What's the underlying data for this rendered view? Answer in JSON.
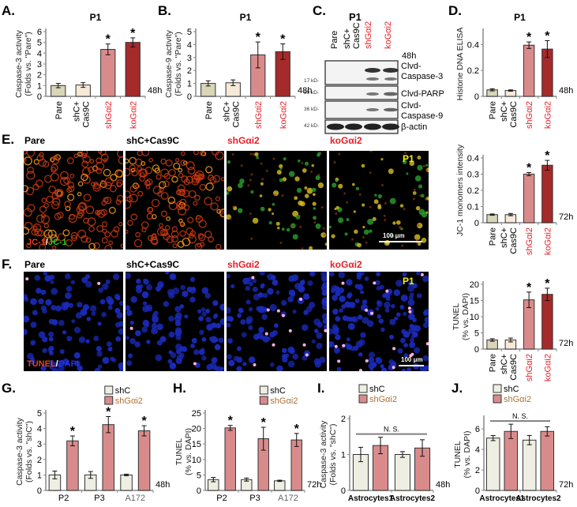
{
  "colors": {
    "pare": "#d8d5b8",
    "shC": "#f6e9d8",
    "shGai2": "#d98b8b",
    "koGai2": "#a52a2a",
    "astro_shC": "#eeeee2",
    "astro_shGai2": "#d98b8b",
    "red_label": "#e8202a",
    "p1_yellow": "#f4f000",
    "ns_line": "#808080"
  },
  "panels": {
    "A": {
      "letter": "A."
    },
    "B": {
      "letter": "B."
    },
    "C": {
      "letter": "C.",
      "title": "P1",
      "time": "48h",
      "lanes": [
        "Pare",
        "shC+ Cas9C",
        "shGαi2",
        "koGαi2"
      ],
      "bands": [
        {
          "kd": "17 kD-",
          "label1": "Clvd-",
          "label2": "Caspase-3"
        },
        {
          "kd": "89 kD-",
          "label1": "Clvd-PARP",
          "label2": ""
        },
        {
          "kd": "36 kD-",
          "label1": "Clvd-",
          "label2": "Caspase-9"
        },
        {
          "kd": "42 kD-",
          "label1": "β-actin",
          "label2": ""
        }
      ]
    },
    "D": {
      "letter": "D."
    },
    "E": {
      "letter": "E.",
      "images": [
        "Pare",
        "shC+Cas9C",
        "shGαi2",
        "koGαi2"
      ],
      "badge": "P1",
      "stain_a": "JC-1",
      "stain_sep": "/",
      "stain_b": "JC-1",
      "scale": "100 μm"
    },
    "F": {
      "letter": "F.",
      "images": [
        "Pare",
        "shC+Cas9C",
        "shGαi2",
        "koGαi2"
      ],
      "badge": "P1",
      "stain_a": "TUNEL",
      "stain_sep": "/",
      "stain_b": "DAPI",
      "scale": "100 μm"
    },
    "G": {
      "letter": "G."
    },
    "H": {
      "letter": "H."
    },
    "I": {
      "letter": "I."
    },
    "J": {
      "letter": "J."
    }
  },
  "chart_data": [
    {
      "id": "A",
      "type": "bar",
      "title": "P1",
      "ylabel": "Caspase-3 activity (Folds vs. \"Pare\")",
      "categories": [
        "Pare",
        "shC+ Cas9C",
        "shGαi2",
        "koGαi2"
      ],
      "red_categories": [
        2,
        3
      ],
      "values": [
        1.0,
        1.05,
        4.35,
        5.0
      ],
      "errors": [
        0.2,
        0.22,
        0.5,
        0.42
      ],
      "significant": [
        false,
        false,
        true,
        true
      ],
      "ylim": [
        0,
        6
      ],
      "yticks": [
        0,
        1,
        2,
        3,
        4,
        5,
        6
      ],
      "time": "48h"
    },
    {
      "id": "B",
      "type": "bar",
      "title": "P1",
      "ylabel": "Caspase-9 activity (Folds vs. \"Pare\")",
      "categories": [
        "Pare",
        "shC+ Cas9C",
        "shGαi2",
        "koGαi2"
      ],
      "red_categories": [
        2,
        3
      ],
      "values": [
        1.0,
        1.05,
        3.2,
        3.45
      ],
      "errors": [
        0.2,
        0.22,
        1.0,
        0.6
      ],
      "significant": [
        false,
        false,
        true,
        true
      ],
      "ylim": [
        0,
        5
      ],
      "yticks": [
        0,
        1,
        2,
        3,
        4,
        5
      ],
      "time": "48h"
    },
    {
      "id": "D",
      "type": "bar",
      "title": "P1",
      "ylabel": "Histone DNA ELISA",
      "categories": [
        "Pare",
        "shC+ Cas9C",
        "shGαi2",
        "koGαi2"
      ],
      "red_categories": [
        2,
        3
      ],
      "values": [
        0.05,
        0.045,
        0.395,
        0.365
      ],
      "errors": [
        0.008,
        0.005,
        0.025,
        0.065
      ],
      "significant": [
        false,
        false,
        true,
        true
      ],
      "ylim": [
        0,
        0.5
      ],
      "yticks": [
        0,
        0.2,
        0.4
      ],
      "time": "48h"
    },
    {
      "id": "E",
      "type": "bar",
      "title": "",
      "ylabel": "JC-1 monomers intensity",
      "categories": [
        "Pare",
        "shC+ Cas9C",
        "shGαi2",
        "koGαi2"
      ],
      "red_categories": [
        2,
        3
      ],
      "values": [
        0.05,
        0.05,
        0.3,
        0.355
      ],
      "errors": [
        0.004,
        0.007,
        0.01,
        0.03
      ],
      "significant": [
        false,
        false,
        true,
        true
      ],
      "ylim": [
        0,
        0.4
      ],
      "yticks": [
        0,
        0.1,
        0.2,
        0.3,
        0.4
      ],
      "time": "72h"
    },
    {
      "id": "F",
      "type": "bar",
      "title": "",
      "ylabel": "TUNEL (% vs. DAPI)",
      "categories": [
        "Pare",
        "shC+ Cas9C",
        "shGαi2",
        "koGαi2"
      ],
      "red_categories": [
        2,
        3
      ],
      "values": [
        2.8,
        2.8,
        15.2,
        16.9
      ],
      "errors": [
        0.4,
        0.6,
        2.4,
        1.9
      ],
      "significant": [
        false,
        false,
        true,
        true
      ],
      "ylim": [
        0,
        20
      ],
      "yticks": [
        0,
        5,
        10,
        15,
        20
      ],
      "time": "72h"
    },
    {
      "id": "G",
      "type": "bar",
      "title": "",
      "ylabel": "Caspase-3 activity (Folds vs. \"shC\")",
      "categories": [
        "P2",
        "P3",
        "A172"
      ],
      "legend": [
        "shC",
        "shGαi2"
      ],
      "series": [
        {
          "name": "shC",
          "values": [
            1.0,
            1.0,
            1.0
          ],
          "errors": [
            0.25,
            0.22,
            0.05
          ]
        },
        {
          "name": "shGαi2",
          "values": [
            3.2,
            4.25,
            3.85
          ],
          "errors": [
            0.32,
            0.52,
            0.33
          ]
        }
      ],
      "significant": [
        true,
        true,
        true
      ],
      "ylim": [
        0,
        5
      ],
      "yticks": [
        0,
        1,
        2,
        3,
        4,
        5
      ],
      "time": "48h"
    },
    {
      "id": "H",
      "type": "bar",
      "title": "",
      "ylabel": "TUNEL (% vs. DAPI)",
      "categories": [
        "P2",
        "P3",
        "A172"
      ],
      "legend": [
        "shC",
        "shGαi2"
      ],
      "series": [
        {
          "name": "shC",
          "values": [
            3.5,
            3.5,
            3.1
          ],
          "errors": [
            0.7,
            0.5,
            0.2
          ]
        },
        {
          "name": "shGαi2",
          "values": [
            20.2,
            16.7,
            16.3
          ],
          "errors": [
            0.8,
            3.7,
            2.1
          ]
        }
      ],
      "significant": [
        true,
        true,
        true
      ],
      "ylim": [
        0,
        25
      ],
      "yticks": [
        0,
        5,
        10,
        15,
        20,
        25
      ],
      "time": "72h"
    },
    {
      "id": "I",
      "type": "bar",
      "title": "",
      "ylabel": "Caspase-3 activity (Folds vs. \"shC\")",
      "categories": [
        "Astrocytes1",
        "Astrocytes2"
      ],
      "legend": [
        "shC",
        "shGαi2"
      ],
      "series": [
        {
          "name": "shC",
          "values": [
            1.0,
            1.0
          ],
          "errors": [
            0.2,
            0.08
          ]
        },
        {
          "name": "shGαi2",
          "values": [
            1.25,
            1.18
          ],
          "errors": [
            0.23,
            0.23
          ]
        }
      ],
      "annotation": "N. S.",
      "ylim": [
        0,
        2
      ],
      "yticks": [
        0,
        1,
        2
      ],
      "time": "48h"
    },
    {
      "id": "J",
      "type": "bar",
      "title": "",
      "ylabel": "TUNEL (% vs. DAPI)",
      "categories": [
        "Astrocytes1",
        "Astrocytes2"
      ],
      "legend": [
        "shC",
        "shGαi2"
      ],
      "series": [
        {
          "name": "shC",
          "values": [
            5.1,
            4.9
          ],
          "errors": [
            0.25,
            0.45
          ]
        },
        {
          "name": "shGαi2",
          "values": [
            5.75,
            5.75
          ],
          "errors": [
            0.7,
            0.45
          ]
        }
      ],
      "annotation": "N. S.",
      "ylim": [
        0,
        7
      ],
      "yticks": [
        0,
        2,
        4,
        6
      ],
      "time": "72h"
    }
  ]
}
